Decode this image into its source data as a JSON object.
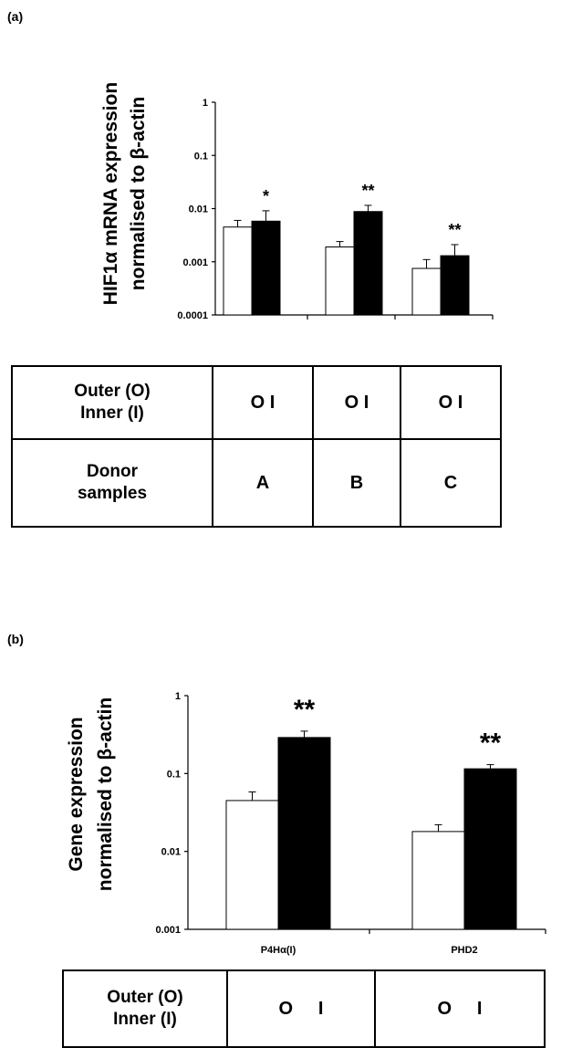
{
  "panels": {
    "a": {
      "label": "(a)",
      "table": {
        "row1_header": [
          "Outer (O)",
          "Inner (I)"
        ],
        "row1_cells": [
          "O  I",
          "O  I",
          "O  I"
        ],
        "row2_header": [
          "Donor",
          "samples"
        ],
        "row2_cells": [
          "A",
          "B",
          "C"
        ]
      }
    },
    "b": {
      "label": "(b)",
      "table": {
        "row1_header": [
          "Outer (O)",
          "Inner (I)"
        ],
        "row1_cells": [
          "O     I",
          "O     I"
        ]
      }
    }
  },
  "chart_data": [
    {
      "type": "bar",
      "yscale": "log",
      "ylim": [
        0.0001,
        1
      ],
      "yticks": [
        "1",
        "0.1",
        "0.01",
        "0.001",
        "0.0001"
      ],
      "ytick_values": [
        1,
        0.1,
        0.01,
        0.001,
        0.0001
      ],
      "ylabel": [
        "HIF1α mRNA expression",
        "normalised to β-actin"
      ],
      "categories": [
        "",
        "",
        ""
      ],
      "series": [
        {
          "color": "#ffffff",
          "values": [
            0.0045,
            0.0019,
            0.00075
          ],
          "err_upper": [
            0.006,
            0.0024,
            0.0011
          ]
        },
        {
          "color": "#000000",
          "values": [
            0.0058,
            0.0088,
            0.0013
          ],
          "err_upper": [
            0.0091,
            0.0115,
            0.0021
          ]
        }
      ],
      "annotations": [
        "*",
        "**",
        "**"
      ]
    },
    {
      "type": "bar",
      "yscale": "log",
      "ylim": [
        0.001,
        1
      ],
      "yticks": [
        "1",
        "0.1",
        "0.01",
        "0.001"
      ],
      "ytick_values": [
        1,
        0.1,
        0.01,
        0.001
      ],
      "ylabel": [
        "Gene expression",
        "normalised to β-actin"
      ],
      "categories": [
        "P4Hα(I)",
        "PHD2"
      ],
      "series": [
        {
          "color": "#ffffff",
          "values": [
            0.045,
            0.018
          ],
          "err_upper": [
            0.058,
            0.022
          ]
        },
        {
          "color": "#000000",
          "values": [
            0.29,
            0.115
          ],
          "err_upper": [
            0.35,
            0.13
          ]
        }
      ],
      "annotations": [
        "**",
        "**"
      ]
    }
  ]
}
